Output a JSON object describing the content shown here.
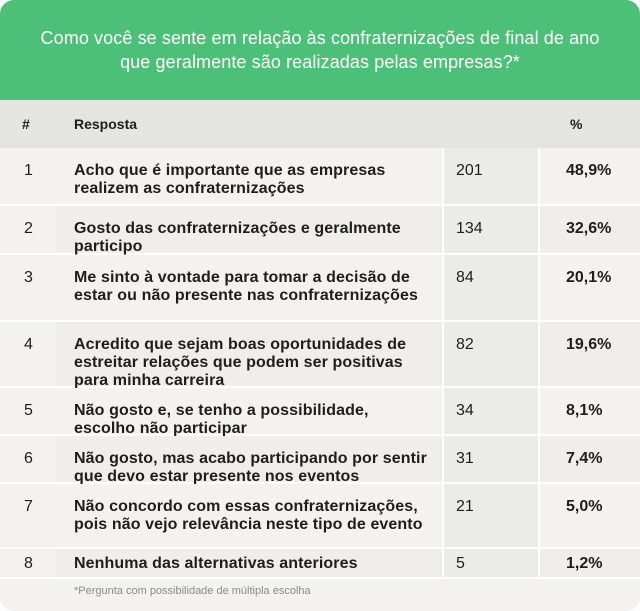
{
  "title": "Como você se sente em relação às confraternizações de final de ano que geralmente são realizadas pelas empresas?*",
  "headers": {
    "num": "#",
    "resposta": "Resposta",
    "pct": "%"
  },
  "rows": [
    {
      "num": "1",
      "resposta": "Acho que é importante que as empresas realizem as confraternizações",
      "count": "201",
      "pct": "48,9%"
    },
    {
      "num": "2",
      "resposta": "Gosto das confraternizações e geralmente participo",
      "count": "134",
      "pct": "32,6%"
    },
    {
      "num": "3",
      "resposta": "Me sinto à vontade para tomar a decisão de estar ou não presente nas confraternizações",
      "count": "84",
      "pct": "20,1%"
    },
    {
      "num": "4",
      "resposta": "Acredito que sejam boas oportunidades de estreitar relações que podem ser positivas para minha carreira",
      "count": "82",
      "pct": "19,6%"
    },
    {
      "num": "5",
      "resposta": "Não gosto e, se tenho a possibilidade, escolho não participar",
      "count": "34",
      "pct": "8,1%"
    },
    {
      "num": "6",
      "resposta": "Não gosto, mas acabo participando por sentir que devo estar presente nos eventos",
      "count": "31",
      "pct": "7,4%"
    },
    {
      "num": "7",
      "resposta": "Não concordo com essas confraternizações, pois não vejo relevância neste tipo de evento",
      "count": "21",
      "pct": "5,0%"
    },
    {
      "num": "8",
      "resposta": "Nenhuma das alternativas anteriores",
      "count": "5",
      "pct": "1,2%"
    }
  ],
  "footnote": "*Pergunta com possibilidade de múltipla escolha",
  "colors": {
    "header_green": "#4cbf78",
    "table_header": "#e4e4e0",
    "row_bg": "#f3f2ef"
  }
}
